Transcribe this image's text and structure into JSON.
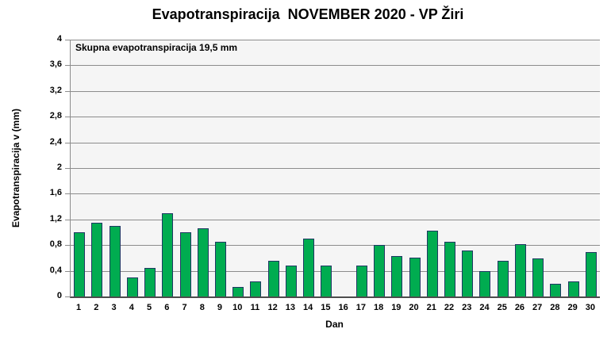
{
  "chart_data": {
    "type": "bar",
    "title": "Evapotranspiracija  NOVEMBER 2020 - VP Žiri",
    "annotation": "Skupna evapotranspiracija 19,5 mm",
    "xlabel": "Dan",
    "ylabel": "Evapotranspiracija v  (mm)",
    "categories": [
      "1",
      "2",
      "3",
      "4",
      "5",
      "6",
      "7",
      "8",
      "9",
      "10",
      "11",
      "12",
      "13",
      "14",
      "15",
      "16",
      "17",
      "18",
      "19",
      "20",
      "21",
      "22",
      "23",
      "24",
      "25",
      "26",
      "27",
      "28",
      "29",
      "30"
    ],
    "values": [
      1.0,
      1.15,
      1.1,
      0.3,
      0.44,
      1.3,
      1.0,
      1.06,
      0.85,
      0.15,
      0.24,
      0.56,
      0.48,
      0.9,
      0.48,
      0,
      0.48,
      0.8,
      0.63,
      0.6,
      1.02,
      0.85,
      0.72,
      0.4,
      0.56,
      0.81,
      0.59,
      0.2,
      0.24,
      0.69
    ],
    "ylim": [
      0,
      4
    ],
    "ytick_step": 0.4,
    "ytick_labels": [
      "0",
      "0,4",
      "0,8",
      "1,2",
      "1,6",
      "2",
      "2,4",
      "2,8",
      "3,2",
      "3,6",
      "4"
    ],
    "grid": true,
    "legend": "none",
    "bar_color": "#00AC50",
    "bar_border_color": "#1F3864",
    "plot_bg": "#F5F5F5",
    "gridline_color": "#8C8C8C"
  }
}
